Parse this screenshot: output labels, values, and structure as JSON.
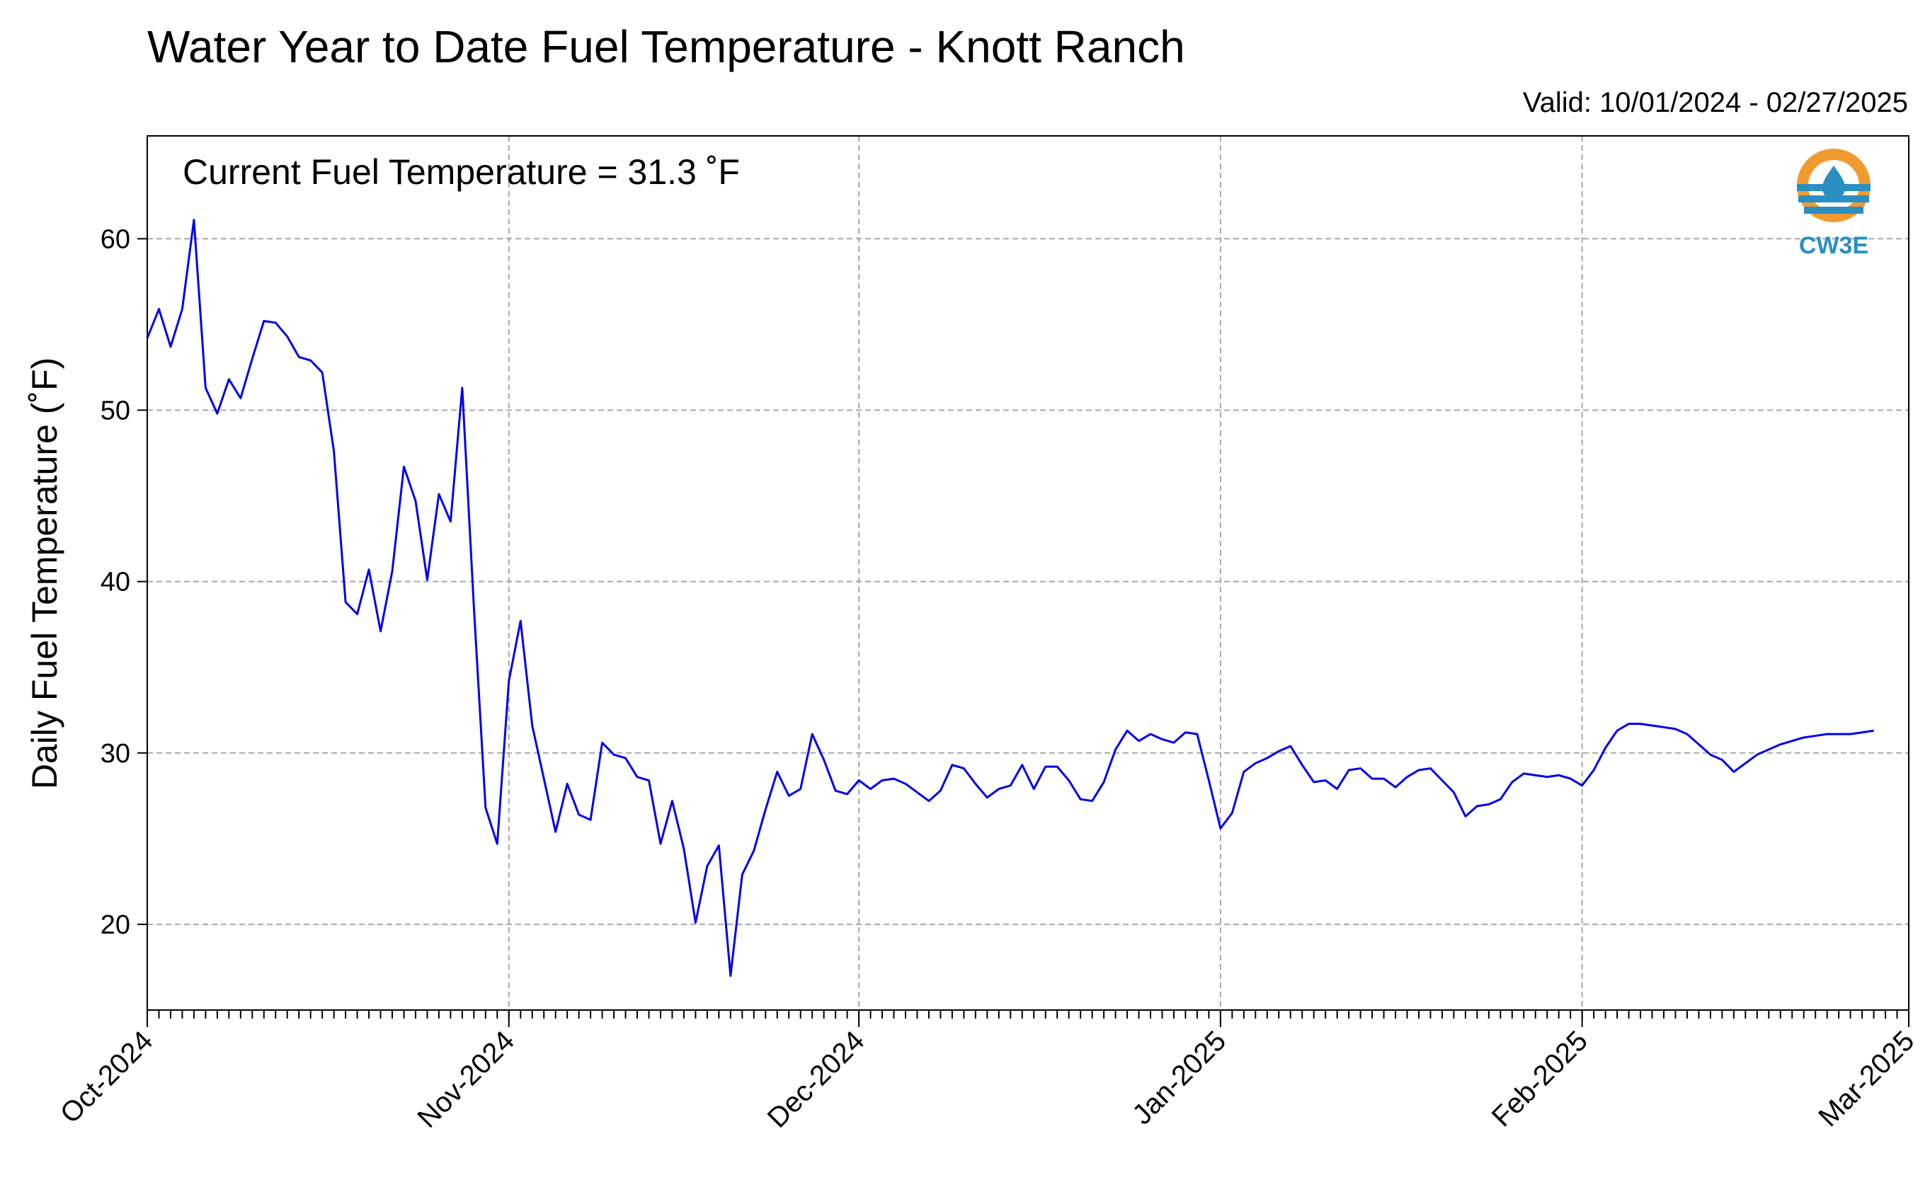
{
  "header": {
    "title": "Water Year to Date Fuel Temperature - Knott Ranch",
    "valid_text": "Valid: 10/01/2024 - 02/27/2025"
  },
  "annotation": {
    "current_text": "Current Fuel Temperature = 31.3  ˚F"
  },
  "logo": {
    "name": "cw3e-logo",
    "label": "CW3E",
    "orange": "#f29a2e",
    "blue": "#2a8fc1"
  },
  "chart_data": {
    "type": "line",
    "title": "Water Year to Date Fuel Temperature - Knott Ranch",
    "xlabel": "",
    "ylabel": "Daily Fuel Temperature (˚F)",
    "xlim": [
      "2024-10-01",
      "2025-03-01"
    ],
    "ylim": [
      15,
      66
    ],
    "grid": true,
    "line_color": "#0000ee",
    "x_ticks": [
      {
        "date": "2024-10-01",
        "label": "Oct-2024"
      },
      {
        "date": "2024-11-01",
        "label": "Nov-2024"
      },
      {
        "date": "2024-12-01",
        "label": "Dec-2024"
      },
      {
        "date": "2025-01-01",
        "label": "Jan-2025"
      },
      {
        "date": "2025-02-01",
        "label": "Feb-2025"
      },
      {
        "date": "2025-03-01",
        "label": "Mar-2025"
      }
    ],
    "y_ticks": [
      20,
      30,
      40,
      50,
      60
    ],
    "series": [
      {
        "start_date": "2024-10-01",
        "interval": "daily",
        "values": [
          54.2,
          55.9,
          53.7,
          55.9,
          61.1,
          51.3,
          49.8,
          51.8,
          50.7,
          53.0,
          55.2,
          55.1,
          54.3,
          53.1,
          52.9,
          52.2,
          47.6,
          38.8,
          38.1,
          40.7,
          37.1,
          40.6,
          46.7,
          44.7,
          40.1,
          45.1,
          43.5,
          51.3,
          38.5,
          26.8,
          24.7,
          34.2,
          37.7,
          31.6,
          28.5,
          25.4,
          28.2,
          26.4,
          26.1,
          30.6,
          29.9,
          29.7,
          28.6,
          28.4,
          24.7,
          27.2,
          24.4,
          20.1,
          23.4,
          24.6,
          17.0,
          22.9,
          24.3,
          26.7,
          28.9,
          27.5,
          27.9,
          31.1,
          29.6,
          27.8,
          27.6,
          28.4,
          27.9,
          28.4,
          28.5,
          28.2,
          27.7,
          27.2,
          27.8,
          29.3,
          29.1,
          28.2,
          27.4,
          27.9,
          28.1,
          29.3,
          27.9,
          29.2,
          29.2,
          28.4,
          27.3,
          27.2,
          28.3,
          30.2,
          31.3,
          30.7,
          31.1,
          30.8,
          30.6,
          31.2,
          31.1,
          28.4,
          25.6,
          26.5,
          28.9,
          29.4,
          29.7,
          30.1,
          30.4,
          29.3,
          28.3,
          28.4,
          27.9,
          29.0,
          29.1,
          28.5,
          28.5,
          28.0,
          28.6,
          29.0,
          29.1,
          28.4,
          27.7,
          26.3,
          26.9,
          27.0,
          27.3,
          28.3,
          28.8,
          28.7,
          28.6,
          28.7,
          28.5,
          28.1,
          29.0,
          30.3,
          31.3,
          31.7,
          31.7,
          31.6,
          31.5,
          31.4,
          31.1,
          30.5,
          29.9,
          29.6,
          28.9,
          29.4,
          29.9,
          30.2,
          30.5,
          30.7,
          30.9,
          31.0,
          31.1,
          31.1,
          31.1,
          31.2,
          31.3
        ]
      }
    ]
  }
}
